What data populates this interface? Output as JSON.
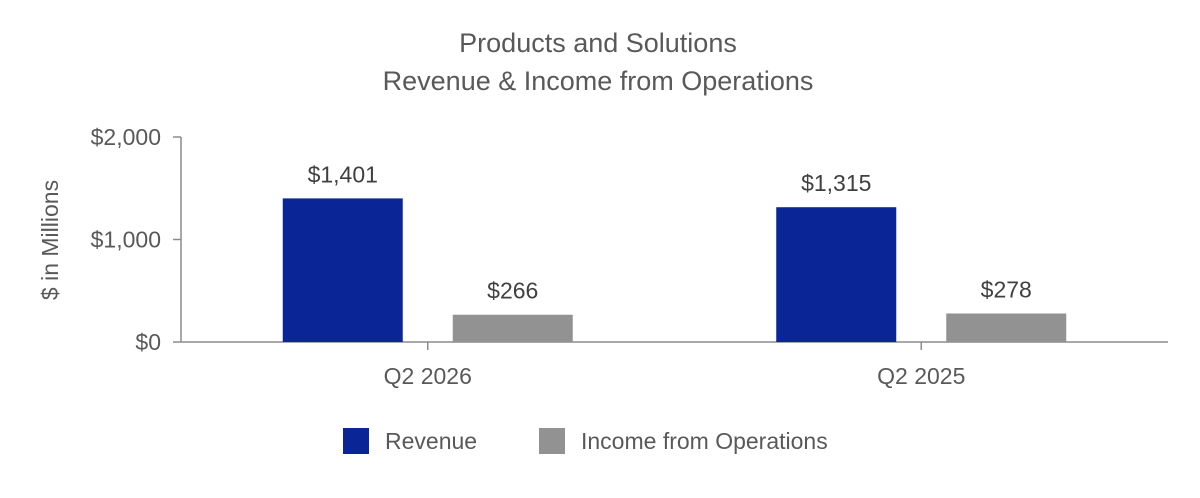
{
  "chart_data": {
    "type": "bar",
    "title": [
      "Products and Solutions",
      "Revenue & Income from Operations"
    ],
    "ylabel": "$ in Millions",
    "xlabel": "",
    "categories": [
      "Q2 2026",
      "Q2 2025"
    ],
    "series": [
      {
        "name": "Revenue",
        "values": [
          1401,
          1315
        ],
        "labels": [
          "$1,401",
          "$1,315"
        ],
        "color": "#0a2596"
      },
      {
        "name": "Income from Operations",
        "values": [
          266,
          278
        ],
        "labels": [
          "$266",
          "$278"
        ],
        "color": "#929292"
      }
    ],
    "ylim": [
      0,
      2000
    ],
    "yticks": [
      0,
      1000,
      2000
    ],
    "ytick_labels": [
      "$0",
      "$1,000",
      "$2,000"
    ],
    "grid": false,
    "legend_position": "bottom"
  }
}
